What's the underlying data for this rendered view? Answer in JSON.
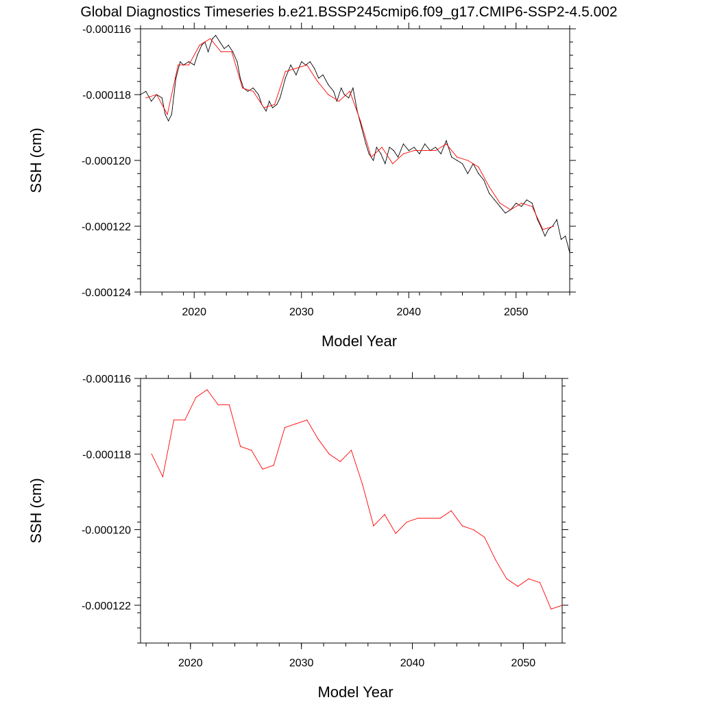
{
  "title": "Global Diagnostics Timeseries b.e21.BSSP245cmip6.f09_g17.CMIP6-SSP2-4.5.002",
  "chart_data": [
    {
      "type": "line",
      "xlabel": "Model Year",
      "ylabel": "SSH (cm)",
      "xlim": [
        2015,
        2055
      ],
      "ylim": [
        -0.000124,
        -0.000116
      ],
      "xticks": [
        2020,
        2030,
        2040,
        2050
      ],
      "xtick_labels": [
        "2020",
        "2030",
        "2040",
        "2050"
      ],
      "yticks": [
        -0.000116,
        -0.000118,
        -0.00012,
        -0.000122,
        -0.000124
      ],
      "ytick_labels": [
        "-0.000116",
        "-0.000118",
        "-0.000120",
        "-0.000122",
        "-0.000124"
      ],
      "series": [
        {
          "kind": "monthly",
          "color": "#000000",
          "x": [
            2015.0,
            2015.5,
            2016.0,
            2016.5,
            2017.0,
            2017.3,
            2017.6,
            2017.9,
            2018.3,
            2018.7,
            2019.0,
            2019.5,
            2020.0,
            2020.3,
            2020.7,
            2021.0,
            2021.3,
            2021.7,
            2022.0,
            2022.4,
            2022.8,
            2023.2,
            2023.6,
            2024.0,
            2024.3,
            2024.6,
            2025.0,
            2025.5,
            2026.0,
            2026.3,
            2026.7,
            2027.0,
            2027.3,
            2027.7,
            2028.0,
            2028.5,
            2029.0,
            2029.5,
            2030.0,
            2030.4,
            2030.8,
            2031.2,
            2031.6,
            2032.0,
            2032.5,
            2033.0,
            2033.3,
            2033.7,
            2034.0,
            2034.4,
            2034.8,
            2035.2,
            2035.6,
            2036.0,
            2036.3,
            2036.7,
            2037.0,
            2037.4,
            2037.8,
            2038.2,
            2038.6,
            2039.0,
            2039.5,
            2040.0,
            2040.5,
            2041.0,
            2041.5,
            2042.0,
            2042.5,
            2043.0,
            2043.5,
            2044.0,
            2044.5,
            2045.0,
            2045.5,
            2046.0,
            2046.5,
            2047.0,
            2047.5,
            2048.0,
            2048.5,
            2049.0,
            2049.5,
            2050.0,
            2050.5,
            2051.0,
            2051.5,
            2052.0,
            2052.3,
            2052.7,
            2053.0,
            2053.4,
            2053.8,
            2054.2,
            2054.6,
            2055.0
          ],
          "values": [
            -0.000118,
            -0.0001179,
            -0.0001182,
            -0.000118,
            -0.0001181,
            -0.0001186,
            -0.0001188,
            -0.0001186,
            -0.0001175,
            -0.000117,
            -0.0001171,
            -0.000117,
            -0.0001171,
            -0.0001168,
            -0.0001165,
            -0.0001164,
            -0.0001167,
            -0.0001163,
            -0.0001162,
            -0.0001164,
            -0.0001166,
            -0.0001165,
            -0.0001167,
            -0.000117,
            -0.0001175,
            -0.0001178,
            -0.0001179,
            -0.0001178,
            -0.000118,
            -0.0001183,
            -0.0001185,
            -0.0001182,
            -0.0001184,
            -0.0001183,
            -0.0001181,
            -0.0001175,
            -0.0001171,
            -0.0001174,
            -0.000117,
            -0.0001171,
            -0.000117,
            -0.0001172,
            -0.0001175,
            -0.0001174,
            -0.0001177,
            -0.0001179,
            -0.0001182,
            -0.0001178,
            -0.000118,
            -0.0001181,
            -0.0001178,
            -0.0001185,
            -0.000119,
            -0.0001195,
            -0.0001198,
            -0.00012,
            -0.0001196,
            -0.0001198,
            -0.0001201,
            -0.0001196,
            -0.0001197,
            -0.0001199,
            -0.0001195,
            -0.0001197,
            -0.0001196,
            -0.0001198,
            -0.0001195,
            -0.0001197,
            -0.0001196,
            -0.0001198,
            -0.0001194,
            -0.0001199,
            -0.00012,
            -0.0001201,
            -0.0001204,
            -0.0001201,
            -0.0001204,
            -0.0001206,
            -0.000121,
            -0.0001212,
            -0.0001214,
            -0.0001216,
            -0.0001215,
            -0.0001213,
            -0.0001214,
            -0.0001212,
            -0.0001213,
            -0.0001218,
            -0.000122,
            -0.0001223,
            -0.0001221,
            -0.000122,
            -0.0001218,
            -0.0001224,
            -0.0001223,
            -0.0001228
          ]
        },
        {
          "kind": "annual",
          "color": "#ff0000",
          "x": [
            2015.5,
            2016.5,
            2017.5,
            2018.5,
            2019.5,
            2020.5,
            2021.5,
            2022.5,
            2023.5,
            2024.5,
            2025.5,
            2026.5,
            2027.5,
            2028.5,
            2029.5,
            2030.5,
            2031.5,
            2032.5,
            2033.5,
            2034.5,
            2035.5,
            2036.5,
            2037.5,
            2038.5,
            2039.5,
            2040.5,
            2041.5,
            2042.5,
            2043.5,
            2044.5,
            2045.5,
            2046.5,
            2047.5,
            2048.5,
            2049.5,
            2050.5,
            2051.5,
            2052.5,
            2053.5
          ],
          "values": [
            -0.0001181,
            -0.000118,
            -0.0001186,
            -0.0001171,
            -0.0001171,
            -0.0001165,
            -0.0001163,
            -0.0001167,
            -0.0001167,
            -0.0001178,
            -0.0001179,
            -0.0001184,
            -0.0001183,
            -0.0001173,
            -0.0001172,
            -0.0001171,
            -0.0001176,
            -0.000118,
            -0.0001182,
            -0.0001179,
            -0.0001188,
            -0.0001199,
            -0.0001196,
            -0.0001201,
            -0.0001198,
            -0.0001197,
            -0.0001197,
            -0.0001197,
            -0.0001195,
            -0.0001199,
            -0.00012,
            -0.0001202,
            -0.0001208,
            -0.0001213,
            -0.0001215,
            -0.0001213,
            -0.0001214,
            -0.0001221,
            -0.000122
          ]
        }
      ]
    },
    {
      "type": "line",
      "xlabel": "Model Year",
      "ylabel": "SSH (cm)",
      "xlim": [
        2015.5,
        2053.5
      ],
      "ylim": [
        -0.000123,
        -0.000116
      ],
      "xticks": [
        2020,
        2030,
        2040,
        2050
      ],
      "xtick_labels": [
        "2020",
        "2030",
        "2040",
        "2050"
      ],
      "yticks": [
        -0.000116,
        -0.000118,
        -0.00012,
        -0.000122
      ],
      "ytick_labels": [
        "-0.000116",
        "-0.000118",
        "-0.000120",
        "-0.000122"
      ],
      "series": [
        {
          "kind": "annual",
          "color": "#ff0000",
          "x": [
            2016.5,
            2017.5,
            2018.5,
            2019.5,
            2020.5,
            2021.5,
            2022.5,
            2023.5,
            2024.5,
            2025.5,
            2026.5,
            2027.5,
            2028.5,
            2029.5,
            2030.5,
            2031.5,
            2032.5,
            2033.5,
            2034.5,
            2035.5,
            2036.5,
            2037.5,
            2038.5,
            2039.5,
            2040.5,
            2041.5,
            2042.5,
            2043.5,
            2044.5,
            2045.5,
            2046.5,
            2047.5,
            2048.5,
            2049.5,
            2050.5,
            2051.5,
            2052.5,
            2053.5
          ],
          "values": [
            -0.000118,
            -0.0001186,
            -0.0001171,
            -0.0001171,
            -0.0001165,
            -0.0001163,
            -0.0001167,
            -0.0001167,
            -0.0001178,
            -0.0001179,
            -0.0001184,
            -0.0001183,
            -0.0001173,
            -0.0001172,
            -0.0001171,
            -0.0001176,
            -0.000118,
            -0.0001182,
            -0.0001179,
            -0.0001188,
            -0.0001199,
            -0.0001196,
            -0.0001201,
            -0.0001198,
            -0.0001197,
            -0.0001197,
            -0.0001197,
            -0.0001195,
            -0.0001199,
            -0.00012,
            -0.0001202,
            -0.0001208,
            -0.0001213,
            -0.0001215,
            -0.0001213,
            -0.0001214,
            -0.0001221,
            -0.000122
          ]
        }
      ]
    }
  ]
}
